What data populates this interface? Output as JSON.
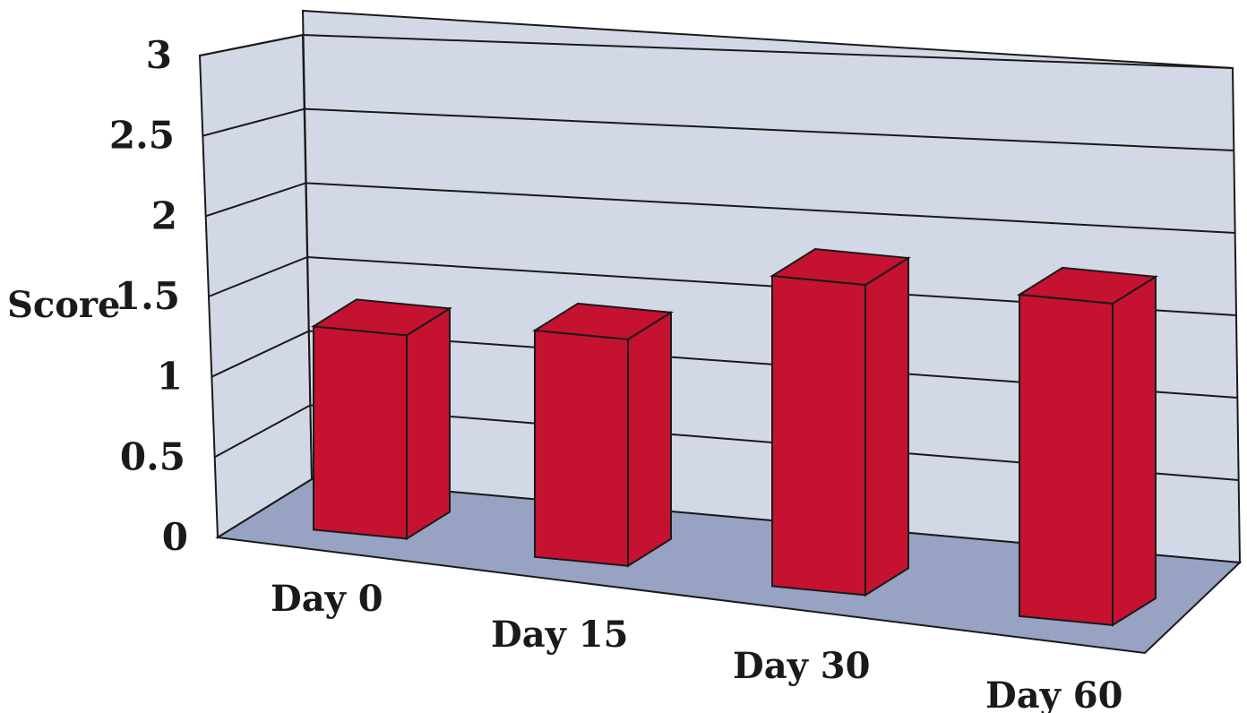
{
  "chart_data": {
    "type": "bar",
    "categories": [
      "Day 0",
      "Day 15",
      "Day 30",
      "Day 60"
    ],
    "values": [
      1.35,
      1.5,
      2.05,
      2.12
    ],
    "ylabel": "Score",
    "xlabel": "",
    "ylim": [
      0,
      3
    ],
    "yticks": [
      "0",
      "0.5",
      "1",
      "1.5",
      "2",
      "2.5",
      "3"
    ],
    "grid": true,
    "style": "3d",
    "colors": {
      "bar": "#c41230",
      "back_wall": "#d3d8e6",
      "side_wall": "#d3d8e6",
      "floor": "#98a2c2",
      "lines": "#1a1a1a"
    }
  }
}
